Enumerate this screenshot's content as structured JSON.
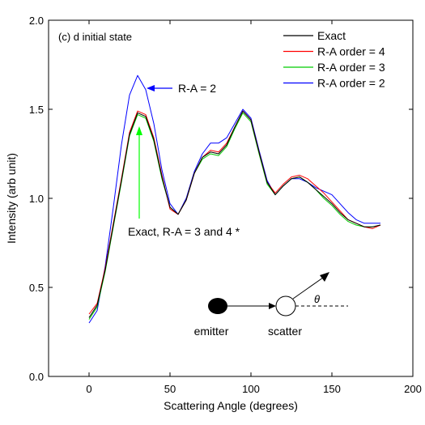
{
  "chart_data": {
    "type": "line",
    "title": "(c) d initial state",
    "xlabel": "Scattering Angle (degrees)",
    "ylabel": "Intensity (arb unit)",
    "xlim": [
      -25,
      200
    ],
    "ylim": [
      0.0,
      2.0
    ],
    "x_ticks": [
      0,
      50,
      100,
      150,
      200
    ],
    "y_ticks": [
      0.0,
      0.5,
      1.0,
      1.5,
      2.0
    ],
    "x_tick_labels": [
      "0",
      "50",
      "100",
      "150",
      "200"
    ],
    "y_tick_labels": [
      "0.0",
      "0.5",
      "1.0",
      "1.5",
      "2.0"
    ],
    "legend_position": "top-right",
    "x": [
      0,
      5,
      10,
      15,
      20,
      25,
      30,
      35,
      40,
      45,
      50,
      55,
      60,
      65,
      70,
      75,
      80,
      85,
      90,
      95,
      100,
      105,
      110,
      115,
      120,
      125,
      130,
      135,
      140,
      145,
      150,
      155,
      160,
      165,
      170,
      175,
      180
    ],
    "series": [
      {
        "name": "Exact",
        "color": "#000000",
        "values": [
          0.33,
          0.4,
          0.6,
          0.85,
          1.1,
          1.36,
          1.48,
          1.46,
          1.33,
          1.12,
          0.95,
          0.91,
          0.99,
          1.14,
          1.23,
          1.26,
          1.25,
          1.3,
          1.4,
          1.49,
          1.44,
          1.26,
          1.09,
          1.02,
          1.07,
          1.11,
          1.12,
          1.09,
          1.05,
          1.01,
          0.97,
          0.92,
          0.88,
          0.86,
          0.84,
          0.84,
          0.85
        ]
      },
      {
        "name": "R-A order = 4",
        "color": "#ff0000",
        "values": [
          0.35,
          0.41,
          0.61,
          0.86,
          1.11,
          1.37,
          1.49,
          1.47,
          1.34,
          1.13,
          0.94,
          0.91,
          0.99,
          1.14,
          1.23,
          1.27,
          1.26,
          1.31,
          1.4,
          1.49,
          1.44,
          1.26,
          1.09,
          1.03,
          1.08,
          1.12,
          1.13,
          1.11,
          1.07,
          1.03,
          0.98,
          0.93,
          0.88,
          0.86,
          0.84,
          0.83,
          0.85
        ]
      },
      {
        "name": "R-A order = 3",
        "color": "#00cc00",
        "values": [
          0.32,
          0.39,
          0.59,
          0.84,
          1.09,
          1.35,
          1.47,
          1.45,
          1.32,
          1.11,
          0.95,
          0.91,
          0.99,
          1.14,
          1.22,
          1.25,
          1.24,
          1.29,
          1.39,
          1.48,
          1.43,
          1.25,
          1.08,
          1.02,
          1.07,
          1.11,
          1.12,
          1.09,
          1.05,
          1.0,
          0.96,
          0.91,
          0.87,
          0.85,
          0.84,
          0.84,
          0.85
        ]
      },
      {
        "name": "R-A order = 2",
        "color": "#0000ff",
        "values": [
          0.3,
          0.37,
          0.62,
          0.95,
          1.3,
          1.58,
          1.69,
          1.61,
          1.42,
          1.16,
          0.97,
          0.91,
          1.0,
          1.15,
          1.25,
          1.31,
          1.31,
          1.34,
          1.42,
          1.5,
          1.45,
          1.27,
          1.1,
          1.02,
          1.07,
          1.11,
          1.11,
          1.09,
          1.06,
          1.04,
          1.02,
          0.97,
          0.92,
          0.88,
          0.86,
          0.86,
          0.86
        ]
      }
    ],
    "annotations": {
      "ra2": "R-A = 2",
      "exact": "Exact, R-A = 3 and 4 *",
      "emitter": "emitter",
      "scatter": "scatter",
      "theta": "θ"
    },
    "annotation_colors": {
      "ra2_arrow": "#0000ff",
      "exact_arrow": "#00ff00"
    }
  }
}
